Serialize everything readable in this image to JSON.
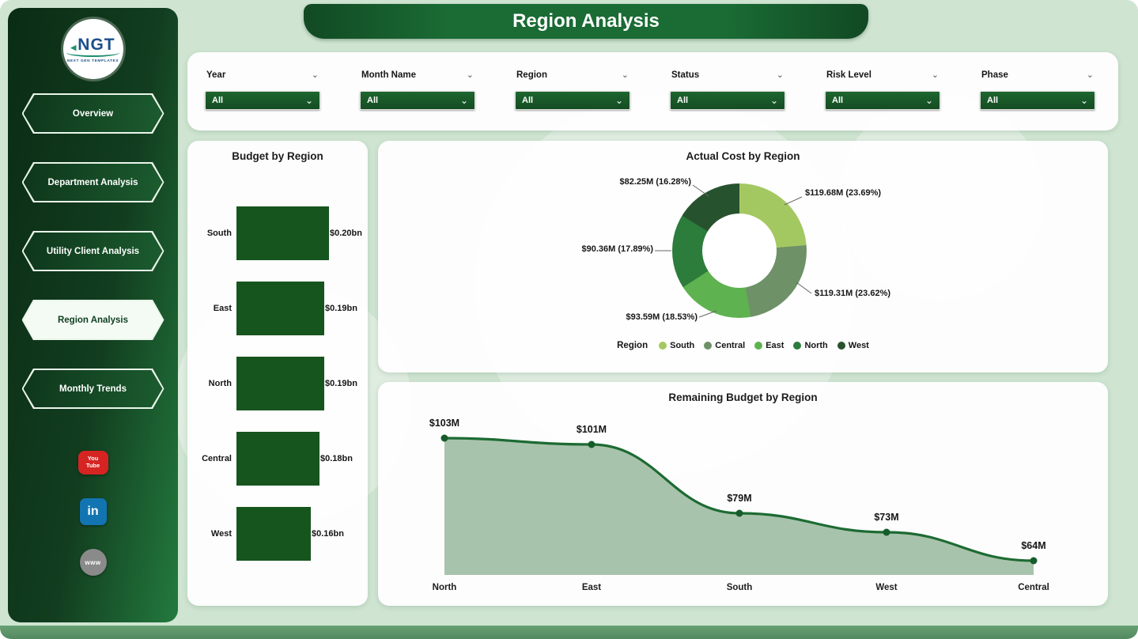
{
  "page": {
    "title_banner": "Region Analysis",
    "bg_color": "#cfe5d2",
    "accent_dark": "#15522a"
  },
  "sidebar": {
    "logo": {
      "text": "NGT",
      "subtext": "NEXT GEN TEMPLATES"
    },
    "nav_items": [
      {
        "label": "Overview",
        "active": false
      },
      {
        "label": "Department Analysis",
        "active": false
      },
      {
        "label": "Utility Client Analysis",
        "active": false
      },
      {
        "label": "Region Analysis",
        "active": true
      },
      {
        "label": "Monthly Trends",
        "active": false
      }
    ],
    "social_icons": [
      {
        "name": "youtube-icon",
        "lines": [
          "You",
          "Tube"
        ],
        "color": "#d62423",
        "shape": "yt"
      },
      {
        "name": "linkedin-icon",
        "lines": [
          "in"
        ],
        "color": "#1275b1",
        "shape": "li"
      },
      {
        "name": "web-icon",
        "lines": [
          "www"
        ],
        "color": "#8a8a8a",
        "shape": "web"
      }
    ]
  },
  "filters": {
    "items": [
      {
        "label": "Year",
        "value": "All"
      },
      {
        "label": "Month Name",
        "value": "All"
      },
      {
        "label": "Region",
        "value": "All"
      },
      {
        "label": "Status",
        "value": "All"
      },
      {
        "label": "Risk Level",
        "value": "All"
      },
      {
        "label": "Phase",
        "value": "All"
      }
    ]
  },
  "chart_data": [
    {
      "type": "bar",
      "title": "Budget by Region",
      "orientation": "horizontal",
      "categories": [
        "South",
        "East",
        "North",
        "Central",
        "West"
      ],
      "values": [
        0.2,
        0.19,
        0.19,
        0.18,
        0.16
      ],
      "value_labels": [
        "$0.20bn",
        "$0.19bn",
        "$0.19bn",
        "$0.18bn",
        "$0.16bn"
      ],
      "bar_color": "#17551f",
      "xlim": [
        0,
        0.2
      ]
    },
    {
      "type": "pie",
      "title": "Actual Cost by Region",
      "legend_title": "Region",
      "donut": true,
      "segments": [
        {
          "name": "South",
          "value": 119.68,
          "pct": 23.69,
          "label": "$119.68M (23.69%)",
          "color": "#a4c861"
        },
        {
          "name": "Central",
          "value": 119.31,
          "pct": 23.62,
          "label": "$119.31M (23.62%)",
          "color": "#6e9168"
        },
        {
          "name": "East",
          "value": 93.59,
          "pct": 18.53,
          "label": "$93.59M (18.53%)",
          "color": "#5eb24f"
        },
        {
          "name": "North",
          "value": 90.36,
          "pct": 17.89,
          "label": "$90.36M (17.89%)",
          "color": "#2c7c3c"
        },
        {
          "name": "West",
          "value": 82.25,
          "pct": 16.28,
          "label": "$82.25M (16.28%)",
          "color": "#27522e"
        }
      ]
    },
    {
      "type": "area",
      "title": "Remaining Budget by Region",
      "categories": [
        "North",
        "East",
        "South",
        "West",
        "Central"
      ],
      "values": [
        103,
        101,
        79,
        73,
        64
      ],
      "value_labels": [
        "$103M",
        "$101M",
        "$79M",
        "$73M",
        "$64M"
      ],
      "line_color": "#1d6b33",
      "fill_color": "#a3c0a6",
      "ylim": [
        59,
        110
      ]
    }
  ]
}
